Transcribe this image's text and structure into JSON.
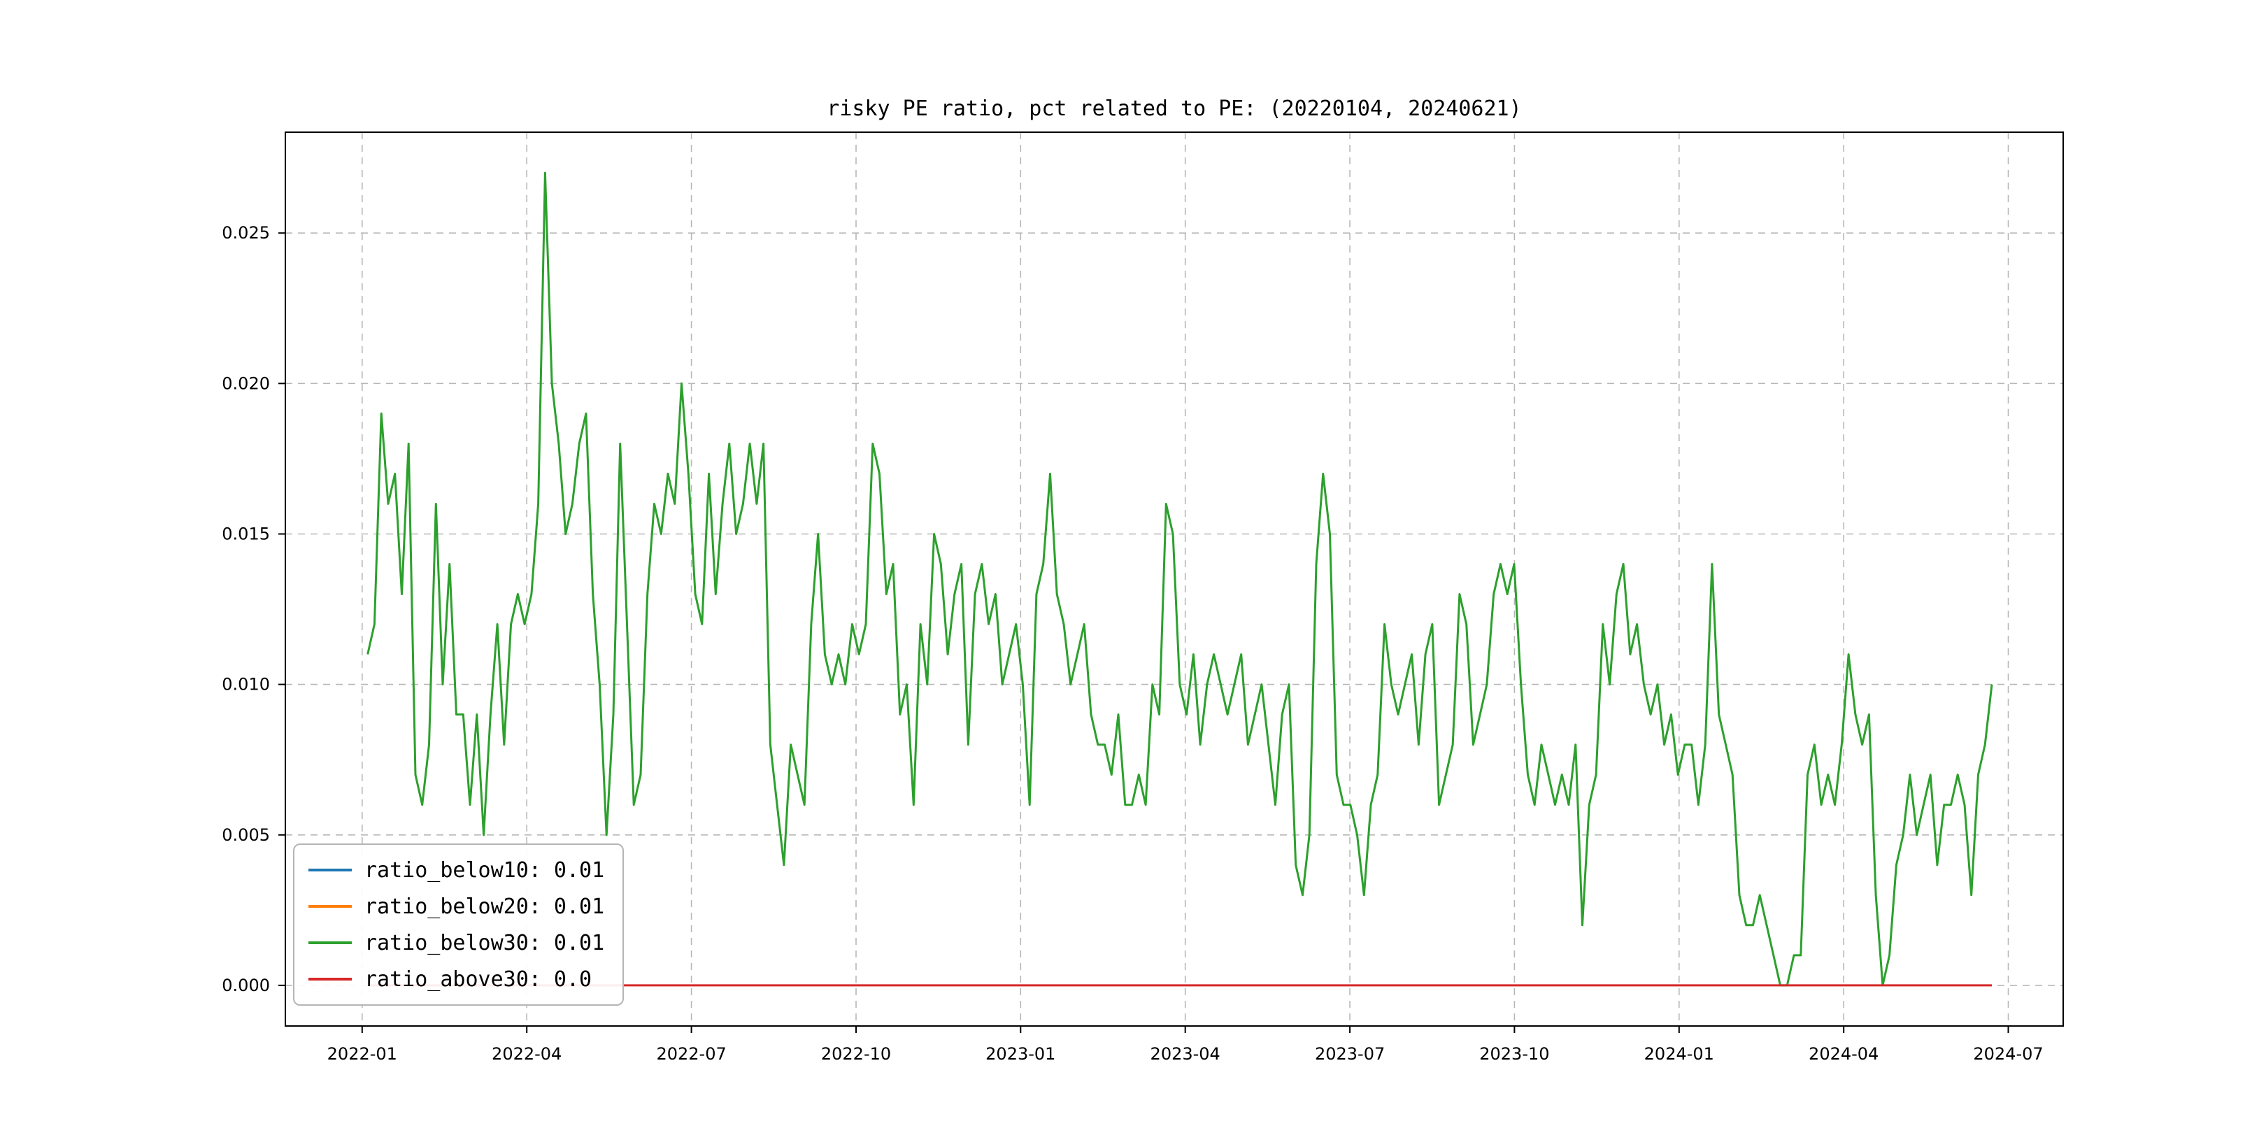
{
  "figure": {
    "background_color": "#ffffff"
  },
  "chart_data": {
    "type": "line",
    "title": "risky PE ratio, pct related to PE: (20220104, 20240621)",
    "xlabel": "",
    "ylabel": "",
    "grid": {
      "on": true,
      "style": "dashed",
      "color": "#b0b0b0"
    },
    "legend_position": "lower left",
    "x_axis": {
      "tick_labels": [
        "2022-01",
        "2022-04",
        "2022-07",
        "2022-10",
        "2023-01",
        "2023-04",
        "2023-07",
        "2023-10",
        "2024-01",
        "2024-04",
        "2024-07"
      ],
      "tick_months": [
        0,
        3,
        6,
        9,
        12,
        15,
        18,
        21,
        24,
        27,
        30
      ],
      "start_date": "20220104",
      "end_date": "20240621"
    },
    "y_axis": {
      "tick_labels": [
        "0.000",
        "0.005",
        "0.010",
        "0.015",
        "0.020",
        "0.025"
      ],
      "tick_values": [
        0.0,
        0.005,
        0.01,
        0.015,
        0.02,
        0.025
      ]
    },
    "layout": {
      "x_range_months": [
        -1.4,
        31.0
      ],
      "y_range": [
        -0.00135,
        0.02835
      ],
      "data_x_range_months": [
        0.1,
        29.7
      ]
    },
    "series": [
      {
        "name": "ratio_below10",
        "color": "#1f77b4",
        "legend_label": "ratio_below10: 0.01",
        "final_value": 0.01,
        "hidden": true,
        "note": "coincident with ratio_below30, hidden behind it"
      },
      {
        "name": "ratio_below20",
        "color": "#ff7f0e",
        "legend_label": "ratio_below20: 0.01",
        "final_value": 0.01,
        "hidden": true,
        "note": "coincident with ratio_below30, hidden behind it"
      },
      {
        "name": "ratio_below30",
        "color": "#2ca02c",
        "legend_label": "ratio_below30: 0.01",
        "final_value": 0.01,
        "hidden": false,
        "values": [
          0.011,
          0.012,
          0.019,
          0.016,
          0.017,
          0.013,
          0.018,
          0.007,
          0.006,
          0.008,
          0.016,
          0.01,
          0.014,
          0.009,
          0.009,
          0.006,
          0.009,
          0.005,
          0.009,
          0.012,
          0.008,
          0.012,
          0.013,
          0.012,
          0.013,
          0.016,
          0.027,
          0.02,
          0.018,
          0.015,
          0.016,
          0.018,
          0.019,
          0.013,
          0.01,
          0.005,
          0.009,
          0.018,
          0.012,
          0.006,
          0.007,
          0.013,
          0.016,
          0.015,
          0.017,
          0.016,
          0.02,
          0.017,
          0.013,
          0.012,
          0.017,
          0.013,
          0.016,
          0.018,
          0.015,
          0.016,
          0.018,
          0.016,
          0.018,
          0.008,
          0.006,
          0.004,
          0.008,
          0.007,
          0.006,
          0.012,
          0.015,
          0.011,
          0.01,
          0.011,
          0.01,
          0.012,
          0.011,
          0.012,
          0.018,
          0.017,
          0.013,
          0.014,
          0.009,
          0.01,
          0.006,
          0.012,
          0.01,
          0.015,
          0.014,
          0.011,
          0.013,
          0.014,
          0.008,
          0.013,
          0.014,
          0.012,
          0.013,
          0.01,
          0.011,
          0.012,
          0.01,
          0.006,
          0.013,
          0.014,
          0.017,
          0.013,
          0.012,
          0.01,
          0.011,
          0.012,
          0.009,
          0.008,
          0.008,
          0.007,
          0.009,
          0.006,
          0.006,
          0.007,
          0.006,
          0.01,
          0.009,
          0.016,
          0.015,
          0.01,
          0.009,
          0.011,
          0.008,
          0.01,
          0.011,
          0.01,
          0.009,
          0.01,
          0.011,
          0.008,
          0.009,
          0.01,
          0.008,
          0.006,
          0.009,
          0.01,
          0.004,
          0.003,
          0.005,
          0.014,
          0.017,
          0.015,
          0.007,
          0.006,
          0.006,
          0.005,
          0.003,
          0.006,
          0.007,
          0.012,
          0.01,
          0.009,
          0.01,
          0.011,
          0.008,
          0.011,
          0.012,
          0.006,
          0.007,
          0.008,
          0.013,
          0.012,
          0.008,
          0.009,
          0.01,
          0.013,
          0.014,
          0.013,
          0.014,
          0.01,
          0.007,
          0.006,
          0.008,
          0.007,
          0.006,
          0.007,
          0.006,
          0.008,
          0.002,
          0.006,
          0.007,
          0.012,
          0.01,
          0.013,
          0.014,
          0.011,
          0.012,
          0.01,
          0.009,
          0.01,
          0.008,
          0.009,
          0.007,
          0.008,
          0.008,
          0.006,
          0.008,
          0.014,
          0.009,
          0.008,
          0.007,
          0.003,
          0.002,
          0.002,
          0.003,
          0.002,
          0.001,
          0.0,
          0.0,
          0.001,
          0.001,
          0.007,
          0.008,
          0.006,
          0.007,
          0.006,
          0.008,
          0.011,
          0.009,
          0.008,
          0.009,
          0.003,
          0.0,
          0.001,
          0.004,
          0.005,
          0.007,
          0.005,
          0.006,
          0.007,
          0.004,
          0.006,
          0.006,
          0.007,
          0.006,
          0.003,
          0.007,
          0.008,
          0.01
        ]
      },
      {
        "name": "ratio_above30",
        "color": "#d62728",
        "legend_label": "ratio_above30: 0.0",
        "final_value": 0.0,
        "hidden": false,
        "constant_value": 0.0
      }
    ]
  }
}
